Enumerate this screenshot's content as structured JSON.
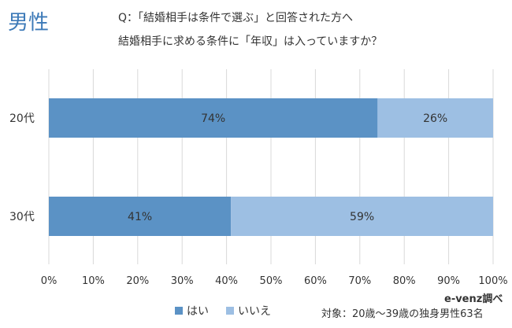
{
  "badge": "男性",
  "question_line1": "Q：「結婚相手は条件で選ぶ」と回答された方へ",
  "question_line2": "結婚相手に求める条件に「年収」は入っていますか？",
  "source": "e-venz調べ",
  "target": "対象：20歳〜39歳の独身男性63名",
  "chart_data": {
    "type": "bar",
    "orientation": "horizontal",
    "stacked": true,
    "percent_stacked": true,
    "categories": [
      "20代",
      "30代"
    ],
    "series": [
      {
        "name": "はい",
        "values": [
          74,
          41
        ],
        "color": "#5b92c5"
      },
      {
        "name": "いいえ",
        "values": [
          26,
          59
        ],
        "color": "#9dbfe3"
      }
    ],
    "data_labels": [
      [
        "74%",
        "41%"
      ],
      [
        "26%",
        "59%"
      ]
    ],
    "xlim": [
      0,
      100
    ],
    "xticks": [
      "0%",
      "10%",
      "20%",
      "30%",
      "40%",
      "50%",
      "60%",
      "70%",
      "80%",
      "90%",
      "100%"
    ],
    "grid": true,
    "legend_position": "bottom"
  }
}
